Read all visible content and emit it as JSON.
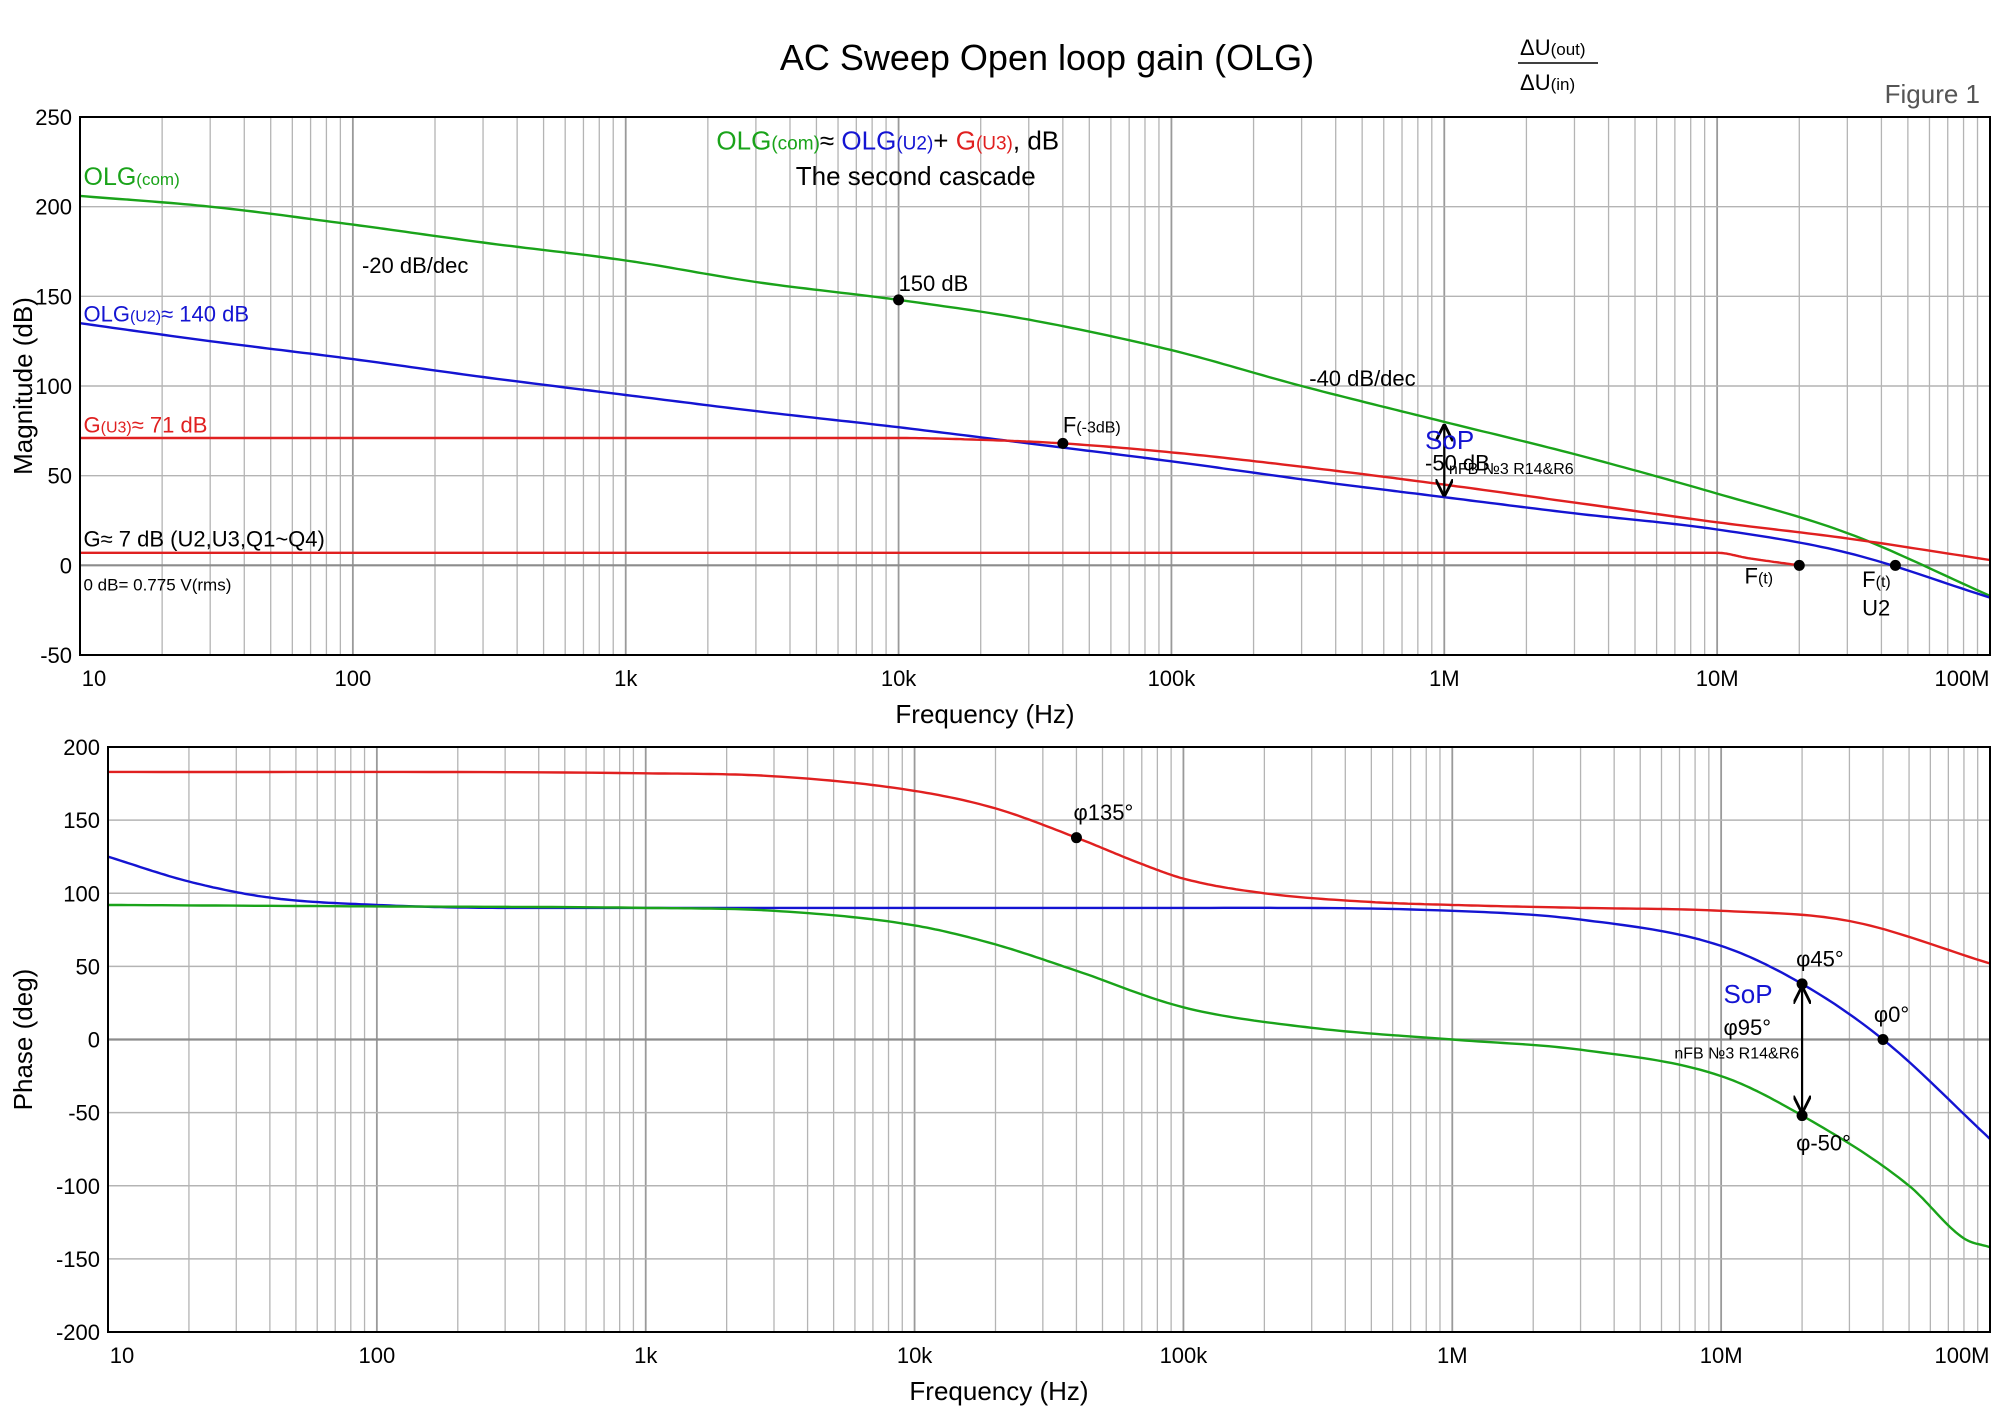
{
  "colors": {
    "green": "#1aa31a",
    "blue": "#1414d2",
    "red": "#e02020",
    "black": "#000000",
    "grid": "#b4b4b4",
    "zero_line": "#8c8c8c",
    "frame": "#000000"
  },
  "header": {
    "title": "AC Sweep  Open loop gain (OLG)",
    "ratio_num": "ΔU",
    "ratio_num_sub": "(out)",
    "ratio_den": "ΔU",
    "ratio_den_sub": "(in)",
    "figure_label": "Figure 1"
  },
  "chart_data": [
    {
      "type": "line",
      "xscale": "log",
      "xlim": [
        10,
        100000000
      ],
      "ylim": [
        -50,
        250
      ],
      "xlabel": "Frequency (Hz)",
      "ylabel": "Magnitude (dB)",
      "x_ticks": [
        10,
        100,
        1000,
        10000,
        100000,
        1000000,
        10000000,
        100000000
      ],
      "x_tick_labels": [
        "10",
        "100",
        "1k",
        "10k",
        "100k",
        "1M",
        "10M",
        "100M"
      ],
      "y_ticks": [
        -50,
        0,
        50,
        100,
        150,
        200,
        250
      ],
      "y_tick_labels": [
        "-50",
        "0",
        "50",
        "100",
        "150",
        "200",
        "250"
      ],
      "grid": true,
      "series": [
        {
          "key": "olg_com",
          "color": "green",
          "x": [
            10,
            30,
            100,
            300,
            1000,
            3000,
            10000,
            30000,
            100000,
            300000,
            1000000,
            3000000,
            10000000,
            30000000,
            100000000
          ],
          "y": [
            206,
            200,
            190,
            180,
            170,
            158,
            148,
            137,
            120,
            100,
            80,
            62,
            40,
            18,
            -17
          ]
        },
        {
          "key": "olg_u2",
          "color": "blue",
          "x": [
            10,
            30,
            100,
            300,
            1000,
            3000,
            10000,
            30000,
            100000,
            300000,
            1000000,
            3000000,
            10000000,
            30000000,
            100000000
          ],
          "y": [
            135,
            125,
            115,
            105,
            95,
            86,
            77,
            68,
            58,
            48,
            38,
            29,
            20,
            7,
            -18
          ]
        },
        {
          "key": "g_u3",
          "color": "red",
          "x": [
            10,
            1000,
            10000,
            20000,
            40000,
            100000,
            300000,
            1000000,
            3000000,
            10000000,
            30000000,
            100000000
          ],
          "y": [
            71,
            71,
            71,
            70,
            68,
            63,
            55,
            45,
            35,
            24,
            15,
            3
          ]
        },
        {
          "key": "g_total",
          "color": "red",
          "x": [
            10,
            1000000,
            10000000,
            13000000,
            20000000
          ],
          "y": [
            7,
            7,
            7,
            4,
            0
          ]
        }
      ],
      "markers": [
        {
          "x": 10000,
          "y": 148
        },
        {
          "x": 40000,
          "y": 68
        },
        {
          "x": 20000000,
          "y": 0
        },
        {
          "x": 45000000,
          "y": 0
        }
      ],
      "arrow": {
        "x": 1000000,
        "y_from": 80,
        "y_to": 37
      },
      "annotations": {
        "formula_olg": "OLG",
        "formula_com": "(com)",
        "formula_approx": "≈ ",
        "formula_u2": "OLG",
        "formula_u2_sub": "(U2)",
        "formula_plus": "+ ",
        "formula_g": "G",
        "formula_g_sub": "(U3)",
        "formula_unit": ", dB",
        "subtitle": "The second cascade",
        "olg_com_label": "OLG",
        "olg_com_sub": "(com)",
        "slope20": "-20 dB/dec",
        "db150": "150 dB",
        "olg_u2_label": "OLG",
        "olg_u2_sub": "(U2)",
        "olg_u2_value": "≈ 140 dB",
        "slope40": "-40 dB/dec",
        "g_u3_label": "G",
        "g_u3_sub": "(U3)",
        "g_u3_value": "≈ 71 dB",
        "f3db_label": "F",
        "f3db_sub": "(-3dB)",
        "sop": "SoP",
        "minus50db": "-50 dB",
        "nfb": "nFB №3 R14&R6",
        "g7": "G≈ 7 dB (U2,U3,Q1~Q4)",
        "zero_db": "0 dB= 0.775 V(rms)",
        "ft_label": "F",
        "ft_sub": "(t)",
        "ft2_label": "F",
        "ft2_sub": "(t)",
        "u2": "U2"
      }
    },
    {
      "type": "line",
      "xscale": "log",
      "xlim": [
        10,
        100000000
      ],
      "ylim": [
        -200,
        200
      ],
      "xlabel": "Frequency (Hz)",
      "ylabel": "Phase (deg)",
      "x_ticks": [
        10,
        100,
        1000,
        10000,
        100000,
        1000000,
        10000000,
        100000000
      ],
      "x_tick_labels": [
        "10",
        "100",
        "1k",
        "10k",
        "100k",
        "1M",
        "10M",
        "100M"
      ],
      "y_ticks": [
        -200,
        -150,
        -100,
        -50,
        0,
        50,
        100,
        150,
        200
      ],
      "y_tick_labels": [
        "-200",
        "-150",
        "-100",
        "-50",
        "0",
        "50",
        "100",
        "150",
        "200"
      ],
      "grid": true,
      "series": [
        {
          "key": "phase_red",
          "color": "red",
          "x": [
            10,
            1000,
            3000,
            10000,
            20000,
            40000,
            70000,
            100000,
            200000,
            500000,
            1000000,
            3000000,
            10000000,
            30000000,
            100000000
          ],
          "y": [
            183,
            182,
            180,
            170,
            158,
            138,
            120,
            110,
            100,
            94,
            92,
            90,
            88,
            81,
            52
          ]
        },
        {
          "key": "phase_blue",
          "color": "blue",
          "x": [
            10,
            20,
            40,
            100,
            300,
            1000,
            10000,
            100000,
            1000000,
            3000000,
            10000000,
            20000000,
            40000000,
            100000000
          ],
          "y": [
            125,
            108,
            97,
            92,
            90,
            90,
            90,
            90,
            88,
            82,
            64,
            38,
            0,
            -68
          ]
        },
        {
          "key": "phase_green",
          "color": "green",
          "x": [
            10,
            100,
            1000,
            3000,
            10000,
            20000,
            40000,
            100000,
            300000,
            1000000,
            3000000,
            10000000,
            20000000,
            50000000,
            80000000,
            100000000
          ],
          "y": [
            92,
            91,
            90,
            88,
            78,
            65,
            47,
            22,
            8,
            0,
            -7,
            -25,
            -52,
            -100,
            -136,
            -142
          ]
        }
      ],
      "markers": [
        {
          "x": 40000,
          "y": 138
        },
        {
          "x": 20000000,
          "y": 38
        },
        {
          "x": 20000000,
          "y": -52
        },
        {
          "x": 40000000,
          "y": 0
        }
      ],
      "arrow": {
        "x": 20000000,
        "y_from": 38,
        "y_to": -52
      },
      "annotations": {
        "phi135": "φ135°",
        "phi45": "φ45°",
        "sop": "SoP",
        "phi95": "φ95°",
        "nfb": "nFB №3 R14&R6",
        "phi0": "φ0°",
        "phi_minus50": "φ-50°"
      }
    }
  ]
}
